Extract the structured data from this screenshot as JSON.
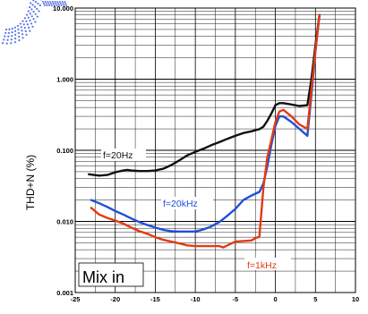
{
  "chart_data": {
    "type": "line",
    "ylabel": "THD+N (%)",
    "yscale": "log",
    "xlim": [
      -25,
      10
    ],
    "ylim": [
      0.001,
      10
    ],
    "x_ticks": [
      "-25",
      "-20",
      "-15",
      "-10",
      "-5",
      "0",
      "5",
      "10"
    ],
    "y_ticks": [
      "0.001",
      "0.010",
      "0.100",
      "1.000",
      "10.000"
    ],
    "annotations": {
      "box": "Mix in",
      "f20hz": "f=20Hz",
      "f20khz": "f=20kHz",
      "f1khz": "f=1kHz"
    },
    "colors": {
      "f20hz": "#111111",
      "f20khz": "#1f4fd8",
      "f1khz": "#e23a12",
      "grid": "#000000",
      "decor": "#5a72e6"
    },
    "series": [
      {
        "key": "f20hz",
        "name": "f=20Hz",
        "color": "#111111",
        "x": [
          -23.3,
          -22,
          -21,
          -20,
          -19,
          -18.5,
          -18,
          -17,
          -16,
          -15,
          -14,
          -13,
          -12,
          -11,
          -10,
          -9,
          -8,
          -7,
          -6,
          -5,
          -4,
          -3,
          -2,
          -1.5,
          -1,
          -0.5,
          0,
          0.5,
          1,
          2,
          3,
          4,
          4.5,
          5,
          5.5
        ],
        "y": [
          0.046,
          0.044,
          0.045,
          0.049,
          0.052,
          0.053,
          0.052,
          0.051,
          0.051,
          0.052,
          0.055,
          0.062,
          0.072,
          0.085,
          0.095,
          0.105,
          0.118,
          0.13,
          0.145,
          0.16,
          0.175,
          0.185,
          0.198,
          0.215,
          0.26,
          0.33,
          0.43,
          0.46,
          0.46,
          0.44,
          0.42,
          0.43,
          1.0,
          3.0,
          8.0
        ]
      },
      {
        "key": "f20khz",
        "name": "f=20kHz",
        "color": "#1f4fd8",
        "x": [
          -23,
          -22,
          -21,
          -20,
          -19,
          -18,
          -17,
          -16,
          -15,
          -14,
          -13,
          -12,
          -11,
          -10,
          -9,
          -8,
          -7,
          -6,
          -5,
          -4,
          -3,
          -2,
          -1.5,
          -1,
          -0.5,
          0,
          0.5,
          1,
          2,
          3,
          4,
          4.5,
          5,
          5.5
        ],
        "y": [
          0.02,
          0.018,
          0.016,
          0.014,
          0.0125,
          0.011,
          0.0098,
          0.0089,
          0.0082,
          0.0076,
          0.0073,
          0.0072,
          0.0072,
          0.0072,
          0.0077,
          0.0085,
          0.0098,
          0.012,
          0.015,
          0.02,
          0.023,
          0.026,
          0.034,
          0.06,
          0.12,
          0.22,
          0.3,
          0.3,
          0.25,
          0.2,
          0.16,
          0.6,
          2.5,
          8.0
        ]
      },
      {
        "key": "f1khz",
        "name": "f=1kHz",
        "color": "#e23a12",
        "x": [
          -23,
          -22,
          -21,
          -20,
          -19,
          -18,
          -17,
          -16,
          -15,
          -14,
          -13,
          -12,
          -11,
          -10,
          -9,
          -8,
          -7,
          -6.5,
          -6,
          -5,
          -4,
          -3,
          -2.5,
          -2,
          -1.5,
          -1,
          -0.5,
          0,
          0.5,
          1,
          2,
          3,
          4,
          4.5,
          5,
          5.5
        ],
        "y": [
          0.0155,
          0.0125,
          0.0112,
          0.0103,
          0.0093,
          0.0082,
          0.0073,
          0.0067,
          0.006,
          0.0055,
          0.0052,
          0.0049,
          0.0046,
          0.0045,
          0.0045,
          0.0045,
          0.0045,
          0.0043,
          0.0046,
          0.0052,
          0.0053,
          0.0054,
          0.0058,
          0.0061,
          0.03,
          0.08,
          0.14,
          0.25,
          0.35,
          0.37,
          0.3,
          0.23,
          0.2,
          0.7,
          2.5,
          8.0
        ]
      }
    ]
  }
}
